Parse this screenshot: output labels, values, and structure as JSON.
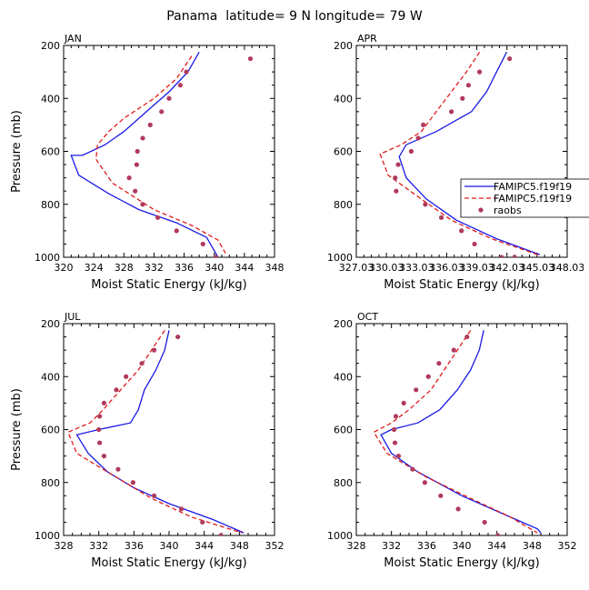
{
  "title": "Panama  latitude= 9 N longitude= 79 W",
  "colors": {
    "model1": "#1a1ae6",
    "model2": "#e01b1b",
    "obs": "#b03a5c"
  },
  "legend": {
    "entries": [
      "FAMIPC5.f19f19",
      "FAMIPC5.f19f19",
      "raobs"
    ],
    "placement": "right of APR panel"
  },
  "chart_data": [
    {
      "panel": "JAN",
      "type": "line",
      "xlabel": "Moist Static Energy (kJ/kg)",
      "ylabel": "Pressure (mb)",
      "xlim": [
        320,
        348
      ],
      "ylim": [
        1000,
        200
      ],
      "y_reversed": true,
      "xticks": [
        320,
        324,
        328,
        332,
        336,
        340,
        344,
        348
      ],
      "xtick_labels": [
        "320",
        "324",
        "328",
        "332",
        "336",
        "340",
        "344",
        "348"
      ],
      "yticks": [
        200,
        400,
        600,
        800,
        1000
      ],
      "ytick_labels": [
        "200",
        "400",
        "600",
        "800",
        "1000"
      ],
      "series": [
        {
          "style": "solid",
          "color": "#1a1ae6",
          "x": [
            338,
            336.5,
            334,
            331,
            328,
            325.5,
            322.5,
            321,
            322,
            326,
            330,
            335,
            339,
            340.5
          ],
          "y": [
            225,
            300,
            375,
            450,
            525,
            575,
            615,
            615,
            690,
            760,
            820,
            870,
            925,
            1000
          ]
        },
        {
          "style": "dashed",
          "color": "#e01b1b",
          "x": [
            337,
            335,
            332,
            328,
            326,
            324.5,
            324.3,
            326.5,
            332,
            337,
            340.5,
            341.5
          ],
          "y": [
            240,
            325,
            400,
            475,
            525,
            575,
            630,
            720,
            820,
            880,
            935,
            985
          ]
        },
        {
          "style": "markers",
          "color": "#b03a5c",
          "x": [
            344.8,
            336.3,
            335.5,
            334,
            333,
            331.5,
            330.5,
            329.8,
            329.7,
            328.7,
            329.5,
            330.5,
            332.5,
            335,
            338.5,
            340.2
          ],
          "y": [
            250,
            300,
            350,
            400,
            450,
            500,
            550,
            600,
            650,
            700,
            750,
            800,
            850,
            900,
            950,
            1000
          ]
        }
      ]
    },
    {
      "panel": "APR",
      "type": "line",
      "xlabel": "Moist Static Energy (kJ/kg)",
      "ylabel": "",
      "xlim": [
        327.03,
        348.03
      ],
      "ylim": [
        1000,
        200
      ],
      "y_reversed": true,
      "xticks": [
        327.03,
        330.03,
        333.03,
        336.03,
        339.03,
        342.03,
        345.03,
        348.03
      ],
      "xtick_labels": [
        "327.03",
        "330.03",
        "333.03",
        "336.03",
        "339.03",
        "342.03",
        "345.03",
        "348.03"
      ],
      "yticks": [
        200,
        400,
        600,
        800,
        1000
      ],
      "ytick_labels": [
        "200",
        "400",
        "600",
        "800",
        "1000"
      ],
      "series": [
        {
          "style": "solid",
          "color": "#1a1ae6",
          "x": [
            342,
            341,
            340,
            338.5,
            335,
            332,
            331.3,
            332,
            334,
            337,
            341,
            345.3
          ],
          "y": [
            225,
            300,
            375,
            450,
            525,
            575,
            620,
            700,
            780,
            860,
            930,
            990
          ]
        },
        {
          "style": "dashed",
          "color": "#e01b1b",
          "x": [
            339.3,
            338,
            336.5,
            335,
            333.5,
            331.5,
            329.4,
            330.2,
            333.5,
            336.5,
            340.5,
            345.1
          ],
          "y": [
            225,
            300,
            375,
            450,
            525,
            575,
            610,
            690,
            780,
            860,
            930,
            990
          ]
        },
        {
          "style": "markers",
          "color": "#b03a5c",
          "x": [
            342.3,
            339.3,
            338.2,
            337.6,
            336.5,
            333.7,
            333.2,
            332.5,
            331.2,
            330.9,
            331.0,
            333.9,
            335.5,
            337.5,
            338.8,
            341.5,
            342.8
          ],
          "y": [
            250,
            300,
            350,
            400,
            450,
            500,
            550,
            600,
            650,
            700,
            750,
            800,
            850,
            900,
            950,
            1000,
            1000
          ]
        }
      ]
    },
    {
      "panel": "JUL",
      "type": "line",
      "xlabel": "Moist Static Energy (kJ/kg)",
      "ylabel": "Pressure (mb)",
      "xlim": [
        328,
        352
      ],
      "ylim": [
        1000,
        200
      ],
      "y_reversed": true,
      "xticks": [
        328,
        332,
        336,
        340,
        344,
        348,
        352
      ],
      "xtick_labels": [
        "328",
        "332",
        "336",
        "340",
        "344",
        "348",
        "352"
      ],
      "yticks": [
        200,
        400,
        600,
        800,
        1000
      ],
      "ytick_labels": [
        "200",
        "400",
        "600",
        "800",
        "1000"
      ],
      "series": [
        {
          "style": "solid",
          "color": "#1a1ae6",
          "x": [
            340,
            339.5,
            338.5,
            337.2,
            336.5,
            335.6,
            332,
            329.5,
            330.8,
            333,
            336,
            340,
            345,
            348.5
          ],
          "y": [
            225,
            300,
            375,
            450,
            525,
            575,
            600,
            620,
            690,
            760,
            820,
            880,
            940,
            990
          ]
        },
        {
          "style": "dashed",
          "color": "#e01b1b",
          "x": [
            339.5,
            338,
            336.5,
            334.5,
            332.5,
            331,
            328.5,
            329.5,
            334,
            338,
            342.5,
            348.3
          ],
          "y": [
            225,
            300,
            375,
            450,
            525,
            575,
            610,
            690,
            780,
            860,
            930,
            990
          ]
        },
        {
          "style": "markers",
          "color": "#b03a5c",
          "x": [
            341,
            338.3,
            336.9,
            335.1,
            334,
            332.6,
            332.1,
            332,
            332.1,
            332.6,
            334.2,
            335.9,
            338.3,
            341.4,
            343.8,
            345.9
          ],
          "y": [
            250,
            300,
            350,
            400,
            450,
            500,
            550,
            600,
            650,
            700,
            750,
            800,
            850,
            900,
            950,
            1000
          ]
        }
      ]
    },
    {
      "panel": "OCT",
      "type": "line",
      "xlabel": "Moist Static Energy (kJ/kg)",
      "ylabel": "",
      "xlim": [
        328,
        352
      ],
      "ylim": [
        1000,
        200
      ],
      "y_reversed": true,
      "xticks": [
        328,
        332,
        336,
        340,
        344,
        348,
        352
      ],
      "xtick_labels": [
        "328",
        "332",
        "336",
        "340",
        "344",
        "348",
        "352"
      ],
      "yticks": [
        200,
        400,
        600,
        800,
        1000
      ],
      "ytick_labels": [
        "200",
        "400",
        "600",
        "800",
        "1000"
      ],
      "series": [
        {
          "style": "solid",
          "color": "#1a1ae6",
          "x": [
            342.5,
            342,
            341,
            339.5,
            337.5,
            335,
            332,
            330.8,
            332,
            335,
            340,
            345.5,
            348.6,
            349
          ],
          "y": [
            225,
            300,
            375,
            450,
            525,
            575,
            600,
            620,
            690,
            760,
            850,
            930,
            975,
            990
          ]
        },
        {
          "style": "dashed",
          "color": "#e01b1b",
          "x": [
            341,
            339.5,
            338,
            336.5,
            334,
            332,
            330,
            331.5,
            336,
            341,
            345.5,
            348.6
          ],
          "y": [
            225,
            300,
            375,
            450,
            525,
            575,
            610,
            690,
            780,
            860,
            930,
            990
          ]
        },
        {
          "style": "markers",
          "color": "#b03a5c",
          "x": [
            340.6,
            339.1,
            337.4,
            336.2,
            334.8,
            333.4,
            332.5,
            332.3,
            332.4,
            332.8,
            334.4,
            335.8,
            337.6,
            339.6,
            342.6,
            344.1
          ],
          "y": [
            250,
            300,
            350,
            400,
            450,
            500,
            550,
            600,
            650,
            700,
            750,
            800,
            850,
            900,
            950,
            1000
          ]
        }
      ]
    }
  ]
}
